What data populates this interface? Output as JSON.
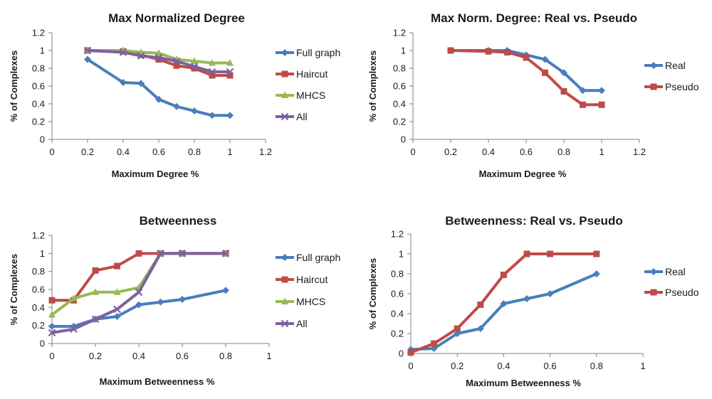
{
  "chart_data": [
    {
      "type": "line",
      "title": "Max Normalized Degree",
      "xlabel": "Maximum Degree %",
      "ylabel": "% of Complexes",
      "xlim": [
        0,
        1.2
      ],
      "ylim": [
        0,
        1.2
      ],
      "xticks": [
        "0",
        "0.2",
        "0.4",
        "0.6",
        "0.8",
        "1",
        "1.2"
      ],
      "yticks": [
        "0",
        "0.2",
        "0.4",
        "0.6",
        "0.8",
        "1",
        "1.2"
      ],
      "grid": false,
      "legend": "right",
      "series": [
        {
          "name": "Full graph",
          "color": "#4a7ebb",
          "marker": "diamond",
          "x": [
            0.2,
            0.4,
            0.5,
            0.6,
            0.7,
            0.8,
            0.9,
            1.0
          ],
          "y": [
            0.9,
            0.64,
            0.63,
            0.45,
            0.37,
            0.32,
            0.27,
            0.27
          ]
        },
        {
          "name": "Haircut",
          "color": "#be4b48",
          "marker": "square",
          "x": [
            0.2,
            0.4,
            0.5,
            0.6,
            0.7,
            0.8,
            0.9,
            1.0
          ],
          "y": [
            1.0,
            0.99,
            0.95,
            0.9,
            0.83,
            0.8,
            0.72,
            0.72
          ]
        },
        {
          "name": "MHCS",
          "color": "#98b954",
          "marker": "triangle",
          "x": [
            0.2,
            0.4,
            0.5,
            0.6,
            0.7,
            0.8,
            0.9,
            1.0
          ],
          "y": [
            1.0,
            1.0,
            0.98,
            0.97,
            0.9,
            0.88,
            0.86,
            0.86
          ]
        },
        {
          "name": "All",
          "color": "#7d60a0",
          "marker": "x",
          "x": [
            0.2,
            0.4,
            0.5,
            0.6,
            0.7,
            0.8,
            0.9,
            1.0
          ],
          "y": [
            1.0,
            0.98,
            0.94,
            0.92,
            0.88,
            0.82,
            0.76,
            0.76
          ]
        }
      ]
    },
    {
      "type": "line",
      "title": "Max Norm. Degree: Real vs. Pseudo",
      "xlabel": "Maximum Degree %",
      "ylabel": "% of Complexes",
      "xlim": [
        0,
        1.2
      ],
      "ylim": [
        0,
        1.2
      ],
      "xticks": [
        "0",
        "0.2",
        "0.4",
        "0.6",
        "0.8",
        "1",
        "1.2"
      ],
      "yticks": [
        "0",
        "0.2",
        "0.4",
        "0.6",
        "0.8",
        "1",
        "1.2"
      ],
      "grid": false,
      "legend": "right",
      "series": [
        {
          "name": "Real",
          "color": "#4a7ebb",
          "marker": "diamond",
          "x": [
            0.2,
            0.4,
            0.5,
            0.6,
            0.7,
            0.8,
            0.9,
            1.0
          ],
          "y": [
            1.0,
            1.0,
            1.0,
            0.95,
            0.9,
            0.75,
            0.55,
            0.55
          ]
        },
        {
          "name": "Pseudo",
          "color": "#be4b48",
          "marker": "square",
          "x": [
            0.2,
            0.4,
            0.5,
            0.6,
            0.7,
            0.8,
            0.9,
            1.0
          ],
          "y": [
            1.0,
            0.99,
            0.98,
            0.92,
            0.75,
            0.54,
            0.39,
            0.39
          ]
        }
      ]
    },
    {
      "type": "line",
      "title": "Betweenness",
      "xlabel": "Maximum Betweenness %",
      "ylabel": "% of Complexes",
      "xlim": [
        0,
        1
      ],
      "ylim": [
        0,
        1.2
      ],
      "xticks": [
        "0",
        "0.2",
        "0.4",
        "0.6",
        "0.8",
        "1"
      ],
      "yticks": [
        "0",
        "0.2",
        "0.4",
        "0.6",
        "0.8",
        "1",
        "1.2"
      ],
      "grid": false,
      "legend": "right",
      "series": [
        {
          "name": "Full graph",
          "color": "#4a7ebb",
          "marker": "diamond",
          "x": [
            0,
            0.1,
            0.2,
            0.3,
            0.4,
            0.5,
            0.6,
            0.8
          ],
          "y": [
            0.19,
            0.19,
            0.27,
            0.3,
            0.43,
            0.46,
            0.49,
            0.59
          ]
        },
        {
          "name": "Haircut",
          "color": "#be4b48",
          "marker": "square",
          "x": [
            0,
            0.1,
            0.2,
            0.3,
            0.4,
            0.5,
            0.6,
            0.8
          ],
          "y": [
            0.48,
            0.48,
            0.81,
            0.86,
            1.0,
            1.0,
            1.0,
            1.0
          ]
        },
        {
          "name": "MHCS",
          "color": "#98b954",
          "marker": "triangle",
          "x": [
            0,
            0.1,
            0.2,
            0.3,
            0.4,
            0.5,
            0.6,
            0.8
          ],
          "y": [
            0.32,
            0.5,
            0.57,
            0.57,
            0.62,
            1.0,
            1.0,
            1.0
          ]
        },
        {
          "name": "All",
          "color": "#7d60a0",
          "marker": "x",
          "x": [
            0,
            0.1,
            0.2,
            0.3,
            0.4,
            0.5,
            0.6,
            0.8
          ],
          "y": [
            0.12,
            0.16,
            0.27,
            0.38,
            0.57,
            1.0,
            1.0,
            1.0
          ]
        }
      ]
    },
    {
      "type": "line",
      "title": "Betweenness: Real vs. Pseudo",
      "xlabel": "Maximum Betweenness %",
      "ylabel": "% of Complexes",
      "xlim": [
        0,
        1
      ],
      "ylim": [
        0,
        1.2
      ],
      "xticks": [
        "0",
        "0.2",
        "0.4",
        "0.6",
        "0.8",
        "1"
      ],
      "yticks": [
        "0",
        "0.2",
        "0.4",
        "0.6",
        "0.8",
        "1",
        "1.2"
      ],
      "grid": false,
      "legend": "right",
      "series": [
        {
          "name": "Real",
          "color": "#4a7ebb",
          "marker": "diamond",
          "x": [
            0,
            0.1,
            0.2,
            0.3,
            0.4,
            0.5,
            0.6,
            0.8
          ],
          "y": [
            0.04,
            0.05,
            0.2,
            0.25,
            0.5,
            0.55,
            0.6,
            0.8
          ]
        },
        {
          "name": "Pseudo",
          "color": "#be4b48",
          "marker": "square",
          "x": [
            0,
            0.1,
            0.2,
            0.3,
            0.4,
            0.5,
            0.6,
            0.8
          ],
          "y": [
            0.01,
            0.1,
            0.25,
            0.49,
            0.79,
            1.0,
            1.0,
            1.0
          ]
        }
      ]
    }
  ]
}
